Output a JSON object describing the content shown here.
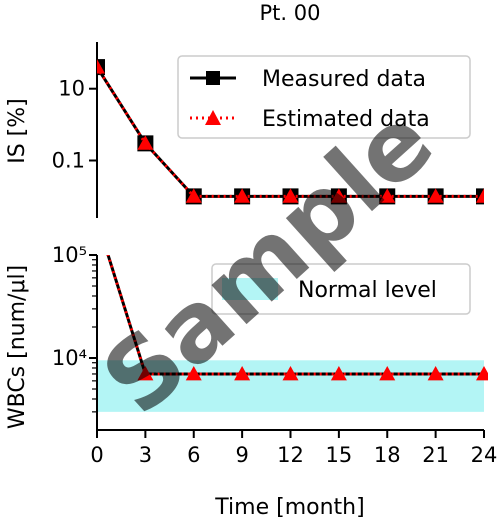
{
  "title": "Pt. 00",
  "watermark": "Sample",
  "colors": {
    "measured": "#000000",
    "estimated": "#ff0000",
    "normal_band": "#b3f5f5"
  },
  "chart_data": [
    {
      "type": "line",
      "title": "Pt. 00",
      "xlabel": "",
      "ylabel": "IS [%]",
      "yscale": "log",
      "xlim": [
        0,
        24
      ],
      "ylim": [
        0.0025,
        200
      ],
      "yticks": [
        {
          "value": 10,
          "label": "10"
        },
        {
          "value": 0.1,
          "label": "0.1"
        }
      ],
      "x": [
        0,
        3,
        6,
        9,
        12,
        15,
        18,
        21,
        24
      ],
      "series": [
        {
          "name": "Measured data",
          "style": "solid-square",
          "values": [
            40,
            0.3,
            0.01,
            0.01,
            0.01,
            0.01,
            0.01,
            0.01,
            0.01
          ]
        },
        {
          "name": "Estimated data",
          "style": "dotted-triangle",
          "values": [
            40,
            0.3,
            0.01,
            0.01,
            0.01,
            0.01,
            0.01,
            0.01,
            0.01
          ]
        }
      ],
      "legend": {
        "position": "top-right",
        "entries": [
          "Measured data",
          "Estimated data"
        ]
      }
    },
    {
      "type": "line",
      "xlabel": "Time [month]",
      "ylabel": "WBCs [num/μl]",
      "yscale": "log",
      "xlim": [
        0,
        24
      ],
      "ylim": [
        2000,
        100000
      ],
      "yticks": [
        {
          "value": 100000,
          "label": "10⁵"
        },
        {
          "value": 10000,
          "label": "10⁴"
        }
      ],
      "xticks": [
        0,
        3,
        6,
        9,
        12,
        15,
        18,
        21,
        24
      ],
      "normal_level": {
        "label": "Normal level",
        "range": [
          3000,
          9500
        ]
      },
      "x": [
        0,
        3,
        6,
        9,
        12,
        15,
        18,
        21,
        24
      ],
      "series": [
        {
          "name": "Measured data",
          "style": "solid",
          "values": [
            220000,
            7000,
            7000,
            7000,
            7000,
            7000,
            7000,
            7000,
            7000
          ]
        },
        {
          "name": "Estimated data",
          "style": "dotted-triangle",
          "values": [
            220000,
            7000,
            7000,
            7000,
            7000,
            7000,
            7000,
            7000,
            7000
          ]
        }
      ],
      "legend": {
        "position": "top-right",
        "entries": [
          "Normal level"
        ]
      }
    }
  ]
}
